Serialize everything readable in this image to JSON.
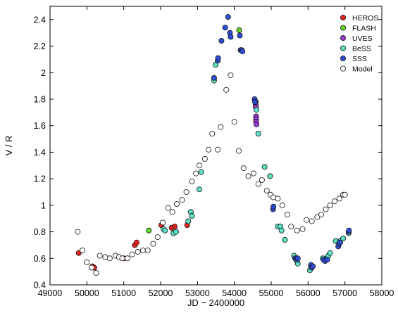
{
  "chart_data": {
    "type": "scatter",
    "title": "",
    "xlabel": "JD − 2400000",
    "ylabel": "V / R",
    "xlim": [
      49000,
      58000
    ],
    "ylim": [
      0.4,
      2.5
    ],
    "x_ticks": [
      49000,
      50000,
      51000,
      52000,
      53000,
      54000,
      55000,
      56000,
      57000,
      58000
    ],
    "y_ticks": [
      0.4,
      0.6,
      0.8,
      1,
      1.2,
      1.4,
      1.6,
      1.8,
      2,
      2.2,
      2.4
    ],
    "legend_position": "top-right",
    "grid": false,
    "series": [
      {
        "name": "HEROS",
        "color": "#e8231f",
        "points": [
          [
            49780,
            0.64
          ],
          [
            50150,
            0.54
          ],
          [
            50200,
            0.53
          ],
          [
            51000,
            0.6
          ],
          [
            51300,
            0.7
          ],
          [
            51350,
            0.72
          ],
          [
            52020,
            0.85
          ],
          [
            52300,
            0.83
          ],
          [
            52380,
            0.84
          ],
          [
            52720,
            0.85
          ]
        ]
      },
      {
        "name": "FLASH",
        "color": "#5fd62a",
        "points": [
          [
            51680,
            0.81
          ],
          [
            54130,
            2.32
          ]
        ]
      },
      {
        "name": "UVES",
        "color": "#9b3ad6",
        "points": [
          [
            54580,
            1.78
          ],
          [
            54580,
            1.76
          ],
          [
            54580,
            1.74
          ],
          [
            54590,
            1.67
          ],
          [
            54590,
            1.65
          ],
          [
            54590,
            1.63
          ],
          [
            54600,
            1.61
          ]
        ]
      },
      {
        "name": "BeSS",
        "color": "#5ee0c4",
        "points": [
          [
            52080,
            0.82
          ],
          [
            52120,
            0.81
          ],
          [
            52350,
            0.79
          ],
          [
            52420,
            0.8
          ],
          [
            52750,
            0.88
          ],
          [
            52820,
            0.95
          ],
          [
            52850,
            0.92
          ],
          [
            53050,
            1.12
          ],
          [
            53100,
            1.25
          ],
          [
            53450,
            1.94
          ],
          [
            53490,
            2.06
          ],
          [
            54600,
            1.72
          ],
          [
            54650,
            1.54
          ],
          [
            54820,
            1.29
          ],
          [
            54970,
            1.22
          ],
          [
            55180,
            0.84
          ],
          [
            55250,
            0.84
          ],
          [
            55280,
            0.81
          ],
          [
            55370,
            0.74
          ],
          [
            55620,
            0.62
          ],
          [
            55650,
            0.6
          ],
          [
            55700,
            0.58
          ],
          [
            55720,
            0.56
          ],
          [
            56050,
            0.51
          ],
          [
            56080,
            0.54
          ],
          [
            56400,
            0.6
          ],
          [
            56500,
            0.6
          ],
          [
            56550,
            0.62
          ],
          [
            56600,
            0.64
          ],
          [
            56750,
            0.73
          ],
          [
            56870,
            0.73
          ],
          [
            56950,
            0.75
          ],
          [
            57100,
            0.79
          ]
        ]
      },
      {
        "name": "SSS",
        "color": "#2c4fd6",
        "points": [
          [
            53450,
            1.96
          ],
          [
            53550,
            2.09
          ],
          [
            53560,
            2.11
          ],
          [
            53650,
            2.24
          ],
          [
            53750,
            2.34
          ],
          [
            53830,
            2.42
          ],
          [
            53880,
            2.3
          ],
          [
            53900,
            2.27
          ],
          [
            54150,
            2.28
          ],
          [
            54170,
            2.17
          ],
          [
            54200,
            2.17
          ],
          [
            54220,
            2.16
          ],
          [
            54550,
            1.8
          ],
          [
            54560,
            1.78
          ],
          [
            55050,
            0.97
          ],
          [
            55060,
            0.99
          ],
          [
            55660,
            0.6
          ],
          [
            55700,
            0.59
          ],
          [
            55720,
            0.6
          ],
          [
            56080,
            0.55
          ],
          [
            56100,
            0.53
          ],
          [
            56130,
            0.54
          ],
          [
            56420,
            0.59
          ],
          [
            56460,
            0.58
          ],
          [
            56520,
            0.59
          ],
          [
            56820,
            0.69
          ],
          [
            56840,
            0.71
          ],
          [
            56870,
            0.72
          ],
          [
            57100,
            0.8
          ],
          [
            57110,
            0.81
          ]
        ]
      },
      {
        "name": "Model",
        "color": "#ffffff",
        "points": [
          [
            49750,
            0.8
          ],
          [
            49880,
            0.66
          ],
          [
            50000,
            0.57
          ],
          [
            50130,
            0.53
          ],
          [
            50250,
            0.49
          ],
          [
            50350,
            0.62
          ],
          [
            50500,
            0.61
          ],
          [
            50620,
            0.6
          ],
          [
            50780,
            0.62
          ],
          [
            50870,
            0.61
          ],
          [
            50960,
            0.6
          ],
          [
            51100,
            0.6
          ],
          [
            51230,
            0.63
          ],
          [
            51380,
            0.65
          ],
          [
            51520,
            0.66
          ],
          [
            51650,
            0.66
          ],
          [
            51800,
            0.71
          ],
          [
            51920,
            0.76
          ],
          [
            52060,
            0.87
          ],
          [
            52200,
            0.98
          ],
          [
            52320,
            0.95
          ],
          [
            52440,
            1.01
          ],
          [
            52580,
            1.04
          ],
          [
            52700,
            1.1
          ],
          [
            52850,
            1.18
          ],
          [
            52960,
            1.24
          ],
          [
            53050,
            1.3
          ],
          [
            53200,
            1.35
          ],
          [
            53300,
            1.42
          ],
          [
            53400,
            1.54
          ],
          [
            53550,
            1.42
          ],
          [
            53630,
            1.59
          ],
          [
            53780,
            1.87
          ],
          [
            53900,
            1.98
          ],
          [
            54000,
            1.63
          ],
          [
            54120,
            1.41
          ],
          [
            54250,
            1.28
          ],
          [
            54380,
            1.22
          ],
          [
            54520,
            1.24
          ],
          [
            54650,
            1.16
          ],
          [
            54750,
            1.19
          ],
          [
            54880,
            1.11
          ],
          [
            54980,
            1.08
          ],
          [
            55060,
            1.06
          ],
          [
            55180,
            1.05
          ],
          [
            55300,
            1.0
          ],
          [
            55440,
            0.93
          ],
          [
            55540,
            0.84
          ],
          [
            55700,
            0.81
          ],
          [
            55850,
            0.82
          ],
          [
            55960,
            0.89
          ],
          [
            56100,
            0.88
          ],
          [
            56250,
            0.91
          ],
          [
            56360,
            0.93
          ],
          [
            56480,
            0.97
          ],
          [
            56600,
            1.0
          ],
          [
            56720,
            1.03
          ],
          [
            56850,
            1.05
          ],
          [
            56950,
            1.08
          ],
          [
            57000,
            1.08
          ]
        ]
      }
    ]
  }
}
